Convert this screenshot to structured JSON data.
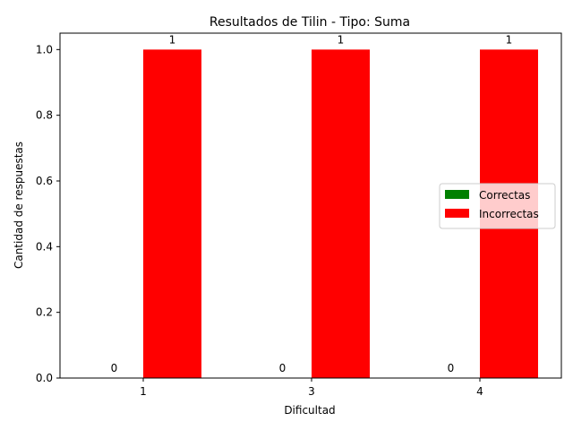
{
  "chart_data": {
    "type": "bar",
    "title": "Resultados de Tilin - Tipo: Suma",
    "xlabel": "Dificultad",
    "ylabel": "Cantidad de respuestas",
    "categories": [
      "1",
      "3",
      "4"
    ],
    "series": [
      {
        "name": "Correctas",
        "values": [
          0,
          0,
          0
        ],
        "color": "#008000"
      },
      {
        "name": "Incorrectas",
        "values": [
          1,
          1,
          1
        ],
        "color": "#ff0000"
      }
    ],
    "ylim": [
      0,
      1.05
    ],
    "yticks": [
      "0.0",
      "0.2",
      "0.4",
      "0.6",
      "0.8",
      "1.0"
    ],
    "grid": false,
    "legend_position": "center-right",
    "data_labels": true
  }
}
